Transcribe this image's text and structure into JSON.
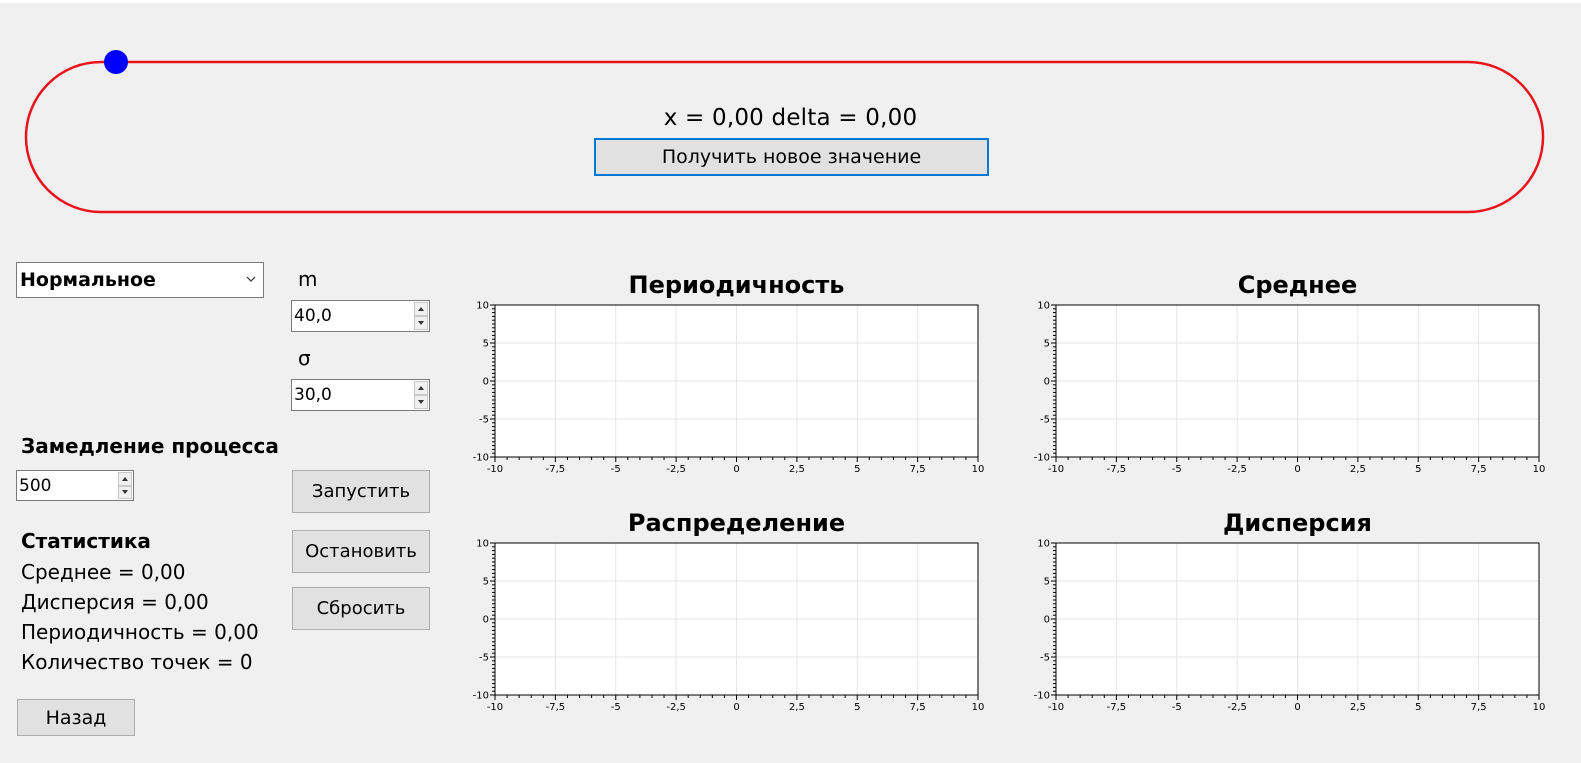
{
  "track": {
    "readout": "x = 0,00 delta = 0,00",
    "new_value_button": "Получить новое значение",
    "track_color": "#e8141c",
    "marker_color": "#0000ff"
  },
  "distribution": {
    "selected": "Нормальное"
  },
  "params": {
    "m_label": "m",
    "m_value": "40,0",
    "sigma_label": "σ",
    "sigma_value": "30,0"
  },
  "slowdown": {
    "label": "Замедление процесса",
    "value": "500"
  },
  "controls": {
    "start": "Запустить",
    "stop": "Остановить",
    "reset": "Сбросить",
    "back": "Назад"
  },
  "stats": {
    "title": "Статистика",
    "mean": "Среднее = 0,00",
    "variance": "Дисперсия = 0,00",
    "periodicity": "Периодичность = 0,00",
    "count": "Количество точек = 0"
  },
  "chart_data": [
    {
      "type": "line",
      "title": "Периодичность",
      "xlim": [
        -10,
        10
      ],
      "ylim": [
        -10,
        10
      ],
      "x_ticks": [
        "-10",
        "-7,5",
        "-5",
        "-2,5",
        "0",
        "2,5",
        "5",
        "7,5",
        "10"
      ],
      "y_ticks": [
        "10",
        "5",
        "0",
        "-5",
        "-10"
      ],
      "grid": true,
      "series": []
    },
    {
      "type": "line",
      "title": "Среднее",
      "xlim": [
        -10,
        10
      ],
      "ylim": [
        -10,
        10
      ],
      "x_ticks": [
        "-10",
        "-7,5",
        "-5",
        "-2,5",
        "0",
        "2,5",
        "5",
        "7,5",
        "10"
      ],
      "y_ticks": [
        "10",
        "5",
        "0",
        "-5",
        "-10"
      ],
      "grid": true,
      "series": []
    },
    {
      "type": "line",
      "title": "Распределение",
      "xlim": [
        -10,
        10
      ],
      "ylim": [
        -10,
        10
      ],
      "x_ticks": [
        "-10",
        "-7,5",
        "-5",
        "-2,5",
        "0",
        "2,5",
        "5",
        "7,5",
        "10"
      ],
      "y_ticks": [
        "10",
        "5",
        "0",
        "-5",
        "-10"
      ],
      "grid": true,
      "series": []
    },
    {
      "type": "line",
      "title": "Дисперсия",
      "xlim": [
        -10,
        10
      ],
      "ylim": [
        -10,
        10
      ],
      "x_ticks": [
        "-10",
        "-7,5",
        "-5",
        "-2,5",
        "0",
        "2,5",
        "5",
        "7,5",
        "10"
      ],
      "y_ticks": [
        "10",
        "5",
        "0",
        "-5",
        "-10"
      ],
      "grid": true,
      "series": []
    }
  ]
}
